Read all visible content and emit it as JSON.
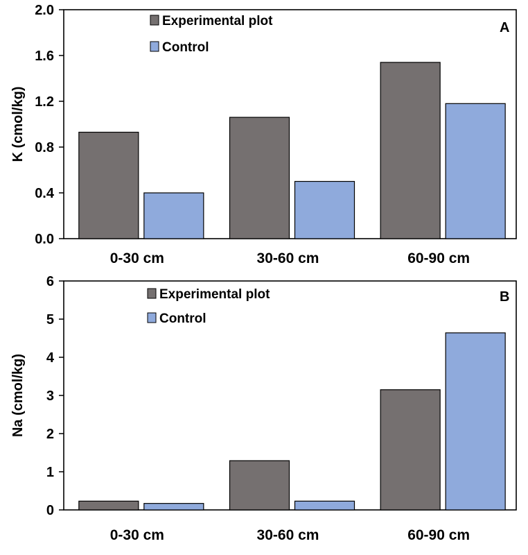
{
  "chart_data": [
    {
      "type": "bar",
      "panel_label": "A",
      "title": "",
      "xlabel": "",
      "ylabel": "K (cmol/kg)",
      "ylim": [
        0,
        2.0
      ],
      "yticks": [
        "0.0",
        "0.4",
        "0.8",
        "1.2",
        "1.6",
        "2.0"
      ],
      "tick_values": [
        0,
        0.4,
        0.8,
        1.2,
        1.6,
        2.0
      ],
      "categories": [
        "0-30 cm",
        "30-60 cm",
        "60-90 cm"
      ],
      "legend_position": "top-center",
      "series": [
        {
          "name": "Experimental plot",
          "color": "#757070",
          "values": [
            0.93,
            1.06,
            1.54
          ]
        },
        {
          "name": "Control",
          "color": "#8faadc",
          "values": [
            0.4,
            0.5,
            1.18
          ]
        }
      ]
    },
    {
      "type": "bar",
      "panel_label": "B",
      "title": "",
      "xlabel": "",
      "ylabel": "Na (cmol/kg)",
      "ylim": [
        0,
        6
      ],
      "yticks": [
        "0",
        "1",
        "2",
        "3",
        "4",
        "5",
        "6"
      ],
      "tick_values": [
        0,
        1,
        2,
        3,
        4,
        5,
        6
      ],
      "categories": [
        "0-30 cm",
        "30-60 cm",
        "60-90 cm"
      ],
      "legend_position": "top-center",
      "series": [
        {
          "name": "Experimental plot",
          "color": "#757070",
          "values": [
            0.23,
            1.29,
            3.15
          ]
        },
        {
          "name": "Control",
          "color": "#8faadc",
          "values": [
            0.17,
            0.23,
            4.64
          ]
        }
      ]
    }
  ]
}
